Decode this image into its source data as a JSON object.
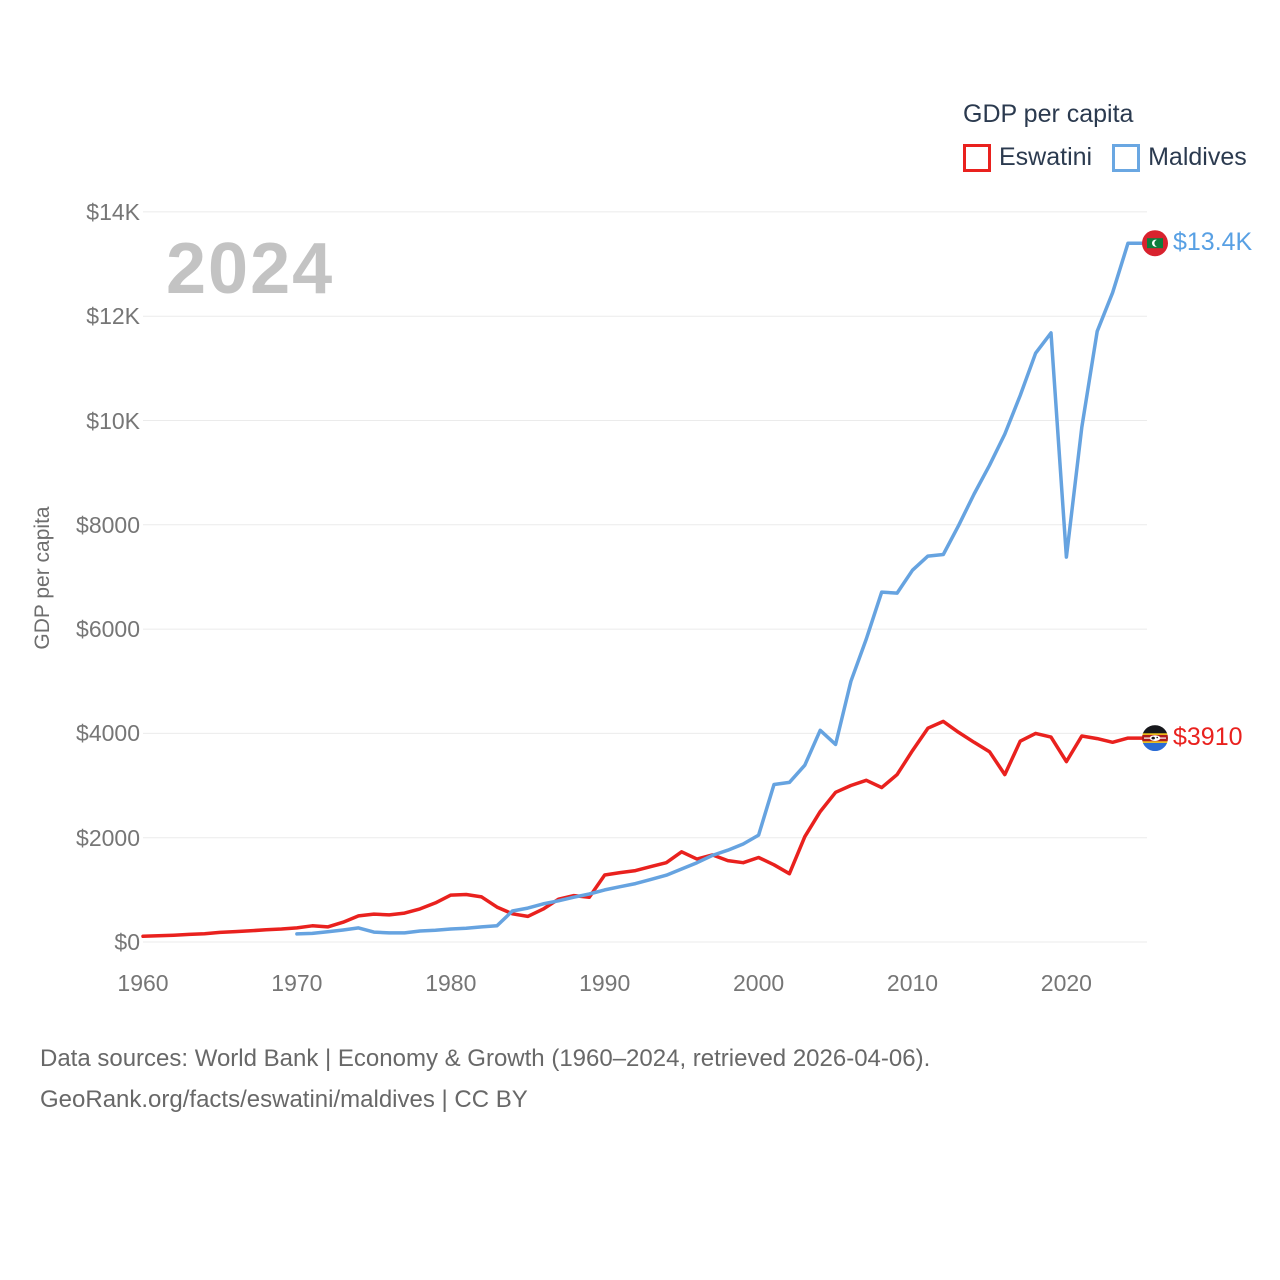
{
  "watermark": "2024",
  "legend": {
    "title": "GDP per capita",
    "items": [
      {
        "label": "Eswatini",
        "color": "#e9211e"
      },
      {
        "label": "Maldives",
        "color": "#6aa7e2"
      }
    ]
  },
  "y_axis": {
    "title": "GDP per capita"
  },
  "end_labels": {
    "maldives": {
      "text": "$13.4K",
      "color": "#58a0e4",
      "flag": "maldives-flag"
    },
    "eswatini": {
      "text": "$3910",
      "color": "#e9211e",
      "flag": "eswatini-flag"
    }
  },
  "footer": {
    "line1": "Data sources: World Bank | Economy & Growth (1960–2024, retrieved 2026-04-06).",
    "line2": "GeoRank.org/facts/eswatini/maldives | CC BY"
  },
  "chart_data": {
    "type": "line",
    "title": "GDP per capita",
    "ylabel": "GDP per capita",
    "ylim": [
      0,
      14000
    ],
    "grid": true,
    "legend_position": "top-right",
    "yticks": [
      {
        "label": "$14K",
        "value": 14000
      },
      {
        "label": "$12K",
        "value": 12000
      },
      {
        "label": "$10K",
        "value": 10000
      },
      {
        "label": "$8000",
        "value": 8000
      },
      {
        "label": "$6000",
        "value": 6000
      },
      {
        "label": "$4000",
        "value": 4000
      },
      {
        "label": "$2000",
        "value": 2000
      },
      {
        "label": "$0",
        "value": 0
      }
    ],
    "xticks": [
      {
        "label": "1960",
        "value": 1960
      },
      {
        "label": "1970",
        "value": 1970
      },
      {
        "label": "1980",
        "value": 1980
      },
      {
        "label": "1990",
        "value": 1990
      },
      {
        "label": "2000",
        "value": 2000
      },
      {
        "label": "2010",
        "value": 2010
      },
      {
        "label": "2020",
        "value": 2020
      }
    ],
    "x": [
      1960,
      1961,
      1962,
      1963,
      1964,
      1965,
      1966,
      1967,
      1968,
      1969,
      1970,
      1971,
      1972,
      1973,
      1974,
      1975,
      1976,
      1977,
      1978,
      1979,
      1980,
      1981,
      1982,
      1983,
      1984,
      1985,
      1986,
      1987,
      1988,
      1989,
      1990,
      1991,
      1992,
      1993,
      1994,
      1995,
      1996,
      1997,
      1998,
      1999,
      2000,
      2001,
      2002,
      2003,
      2004,
      2005,
      2006,
      2007,
      2008,
      2009,
      2010,
      2011,
      2012,
      2013,
      2014,
      2015,
      2016,
      2017,
      2018,
      2019,
      2020,
      2021,
      2022,
      2023,
      2024
    ],
    "series": [
      {
        "name": "Eswatini",
        "color": "#e9211e",
        "end_value_label": "$3910",
        "values": [
          110,
          120,
          130,
          145,
          160,
          185,
          200,
          215,
          235,
          250,
          270,
          310,
          290,
          380,
          500,
          535,
          520,
          555,
          635,
          750,
          900,
          910,
          865,
          670,
          540,
          490,
          630,
          820,
          890,
          860,
          1285,
          1330,
          1370,
          1445,
          1520,
          1730,
          1590,
          1670,
          1560,
          1520,
          1620,
          1480,
          1310,
          2020,
          2500,
          2870,
          3000,
          3100,
          2960,
          3210,
          3670,
          4100,
          4230,
          4020,
          3830,
          3650,
          3210,
          3850,
          4000,
          3930,
          3460,
          3950,
          3900,
          3830,
          3910
        ]
      },
      {
        "name": "Maldives",
        "color": "#66a3e0",
        "end_value_label": "$13.4K",
        "values": [
          null,
          null,
          null,
          null,
          null,
          null,
          null,
          null,
          null,
          null,
          155,
          165,
          195,
          230,
          270,
          190,
          175,
          175,
          210,
          225,
          250,
          265,
          290,
          310,
          595,
          650,
          730,
          790,
          860,
          920,
          1000,
          1060,
          1120,
          1200,
          1280,
          1400,
          1520,
          1660,
          1760,
          1880,
          2050,
          3020,
          3060,
          3390,
          4060,
          3790,
          5000,
          5810,
          6710,
          6690,
          7130,
          7400,
          7430,
          7990,
          8590,
          9140,
          9740,
          10480,
          11290,
          11680,
          7380,
          9870,
          11710,
          12450,
          13400
        ]
      }
    ]
  }
}
